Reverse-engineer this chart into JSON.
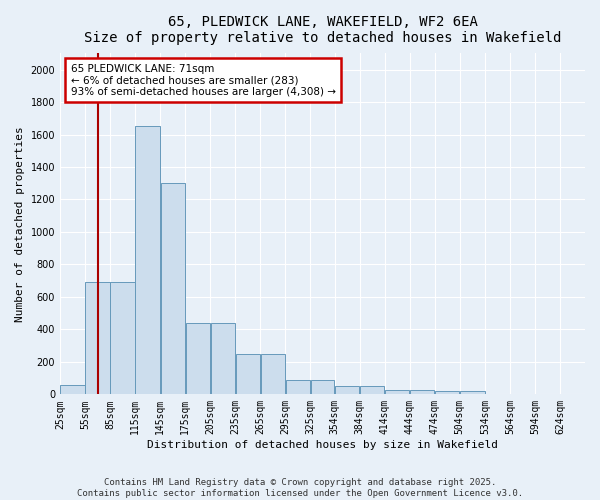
{
  "title_line1": "65, PLEDWICK LANE, WAKEFIELD, WF2 6EA",
  "title_line2": "Size of property relative to detached houses in Wakefield",
  "xlabel": "Distribution of detached houses by size in Wakefield",
  "ylabel": "Number of detached properties",
  "bar_color": "#ccdded",
  "bar_edge_color": "#6699bb",
  "background_color": "#e8f0f8",
  "grid_color": "#ffffff",
  "bins": [
    25,
    55,
    85,
    115,
    145,
    175,
    205,
    235,
    265,
    295,
    325,
    354,
    384,
    414,
    444,
    474,
    504,
    534,
    564,
    594,
    624
  ],
  "bin_labels": [
    "25sqm",
    "55sqm",
    "85sqm",
    "115sqm",
    "145sqm",
    "175sqm",
    "205sqm",
    "235sqm",
    "265sqm",
    "295sqm",
    "325sqm",
    "354sqm",
    "384sqm",
    "414sqm",
    "444sqm",
    "474sqm",
    "504sqm",
    "534sqm",
    "564sqm",
    "594sqm",
    "624sqm"
  ],
  "counts": [
    60,
    690,
    690,
    1650,
    1300,
    440,
    440,
    250,
    250,
    90,
    90,
    50,
    50,
    25,
    25,
    20,
    20,
    5,
    5,
    5
  ],
  "property_size": 71,
  "property_line_color": "#aa0000",
  "annotation_line1": "65 PLEDWICK LANE: 71sqm",
  "annotation_line2": "← 6% of detached houses are smaller (283)",
  "annotation_line3": "93% of semi-detached houses are larger (4,308) →",
  "annotation_box_color": "#ffffff",
  "annotation_border_color": "#cc0000",
  "ylim_max": 2100,
  "yticks": [
    0,
    200,
    400,
    600,
    800,
    1000,
    1200,
    1400,
    1600,
    1800,
    2000
  ],
  "footer_line1": "Contains HM Land Registry data © Crown copyright and database right 2025.",
  "footer_line2": "Contains public sector information licensed under the Open Government Licence v3.0.",
  "title_fontsize": 10,
  "subtitle_fontsize": 9,
  "axis_label_fontsize": 8,
  "tick_fontsize": 7,
  "annotation_fontsize": 7.5,
  "footer_fontsize": 6.5
}
